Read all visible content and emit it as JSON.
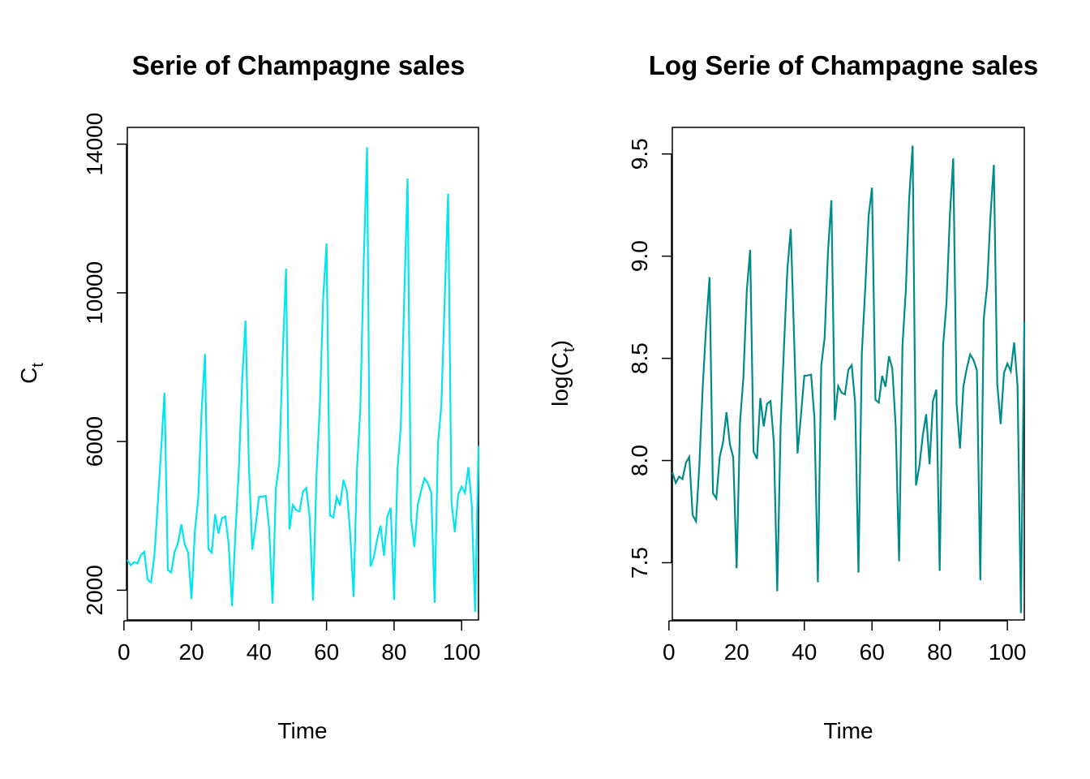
{
  "chart_data": [
    {
      "type": "line",
      "title": "Serie of Champagne sales",
      "xlabel": "Time",
      "ylabel": {
        "main": "C",
        "sub": "t"
      },
      "color": "#00E5EE",
      "xlim": [
        1,
        105
      ],
      "ylim": [
        1200,
        14450
      ],
      "xticks": [
        0,
        20,
        40,
        60,
        80,
        100
      ],
      "yticks": [
        2000,
        6000,
        10000,
        14000
      ],
      "x_start": 1,
      "values": [
        2815,
        2672,
        2755,
        2721,
        2946,
        3036,
        2282,
        2212,
        2922,
        4301,
        5764,
        7312,
        2541,
        2475,
        3031,
        3266,
        3776,
        3230,
        3028,
        1759,
        3595,
        4474,
        6838,
        8357,
        3113,
        3006,
        4047,
        3523,
        3937,
        3986,
        3260,
        1573,
        3528,
        5211,
        7614,
        9254,
        5375,
        3088,
        3718,
        4514,
        4520,
        4539,
        3663,
        1643,
        4739,
        5428,
        8314,
        10651,
        3633,
        4292,
        4154,
        4121,
        4647,
        4753,
        3965,
        1723,
        5048,
        6922,
        9858,
        11331,
        4016,
        3957,
        4510,
        4276,
        4968,
        4677,
        3523,
        1821,
        5222,
        6872,
        10803,
        13916,
        2639,
        2899,
        3370,
        3740,
        2927,
        3986,
        4217,
        1738,
        5221,
        6424,
        9842,
        13076,
        3934,
        3162,
        4286,
        4676,
        5010,
        4874,
        4633,
        1659,
        5951,
        6981,
        9851,
        12670,
        4348,
        3564,
        4577,
        4788,
        4618,
        5312,
        4298,
        1413,
        5877
      ]
    },
    {
      "type": "line",
      "title": "Log Serie of Champagne sales",
      "xlabel": "Time",
      "ylabel": {
        "pre": "log(C",
        "sub": "t",
        "post": ")"
      },
      "color": "#008B8B",
      "xlim": [
        1,
        105
      ],
      "ylim": [
        7.22,
        9.63
      ],
      "xticks": [
        0,
        20,
        40,
        60,
        80,
        100
      ],
      "yticks": [
        7.5,
        8.0,
        8.5,
        9.0,
        9.5
      ],
      "x_start": 1,
      "log_of_series": 0
    }
  ]
}
